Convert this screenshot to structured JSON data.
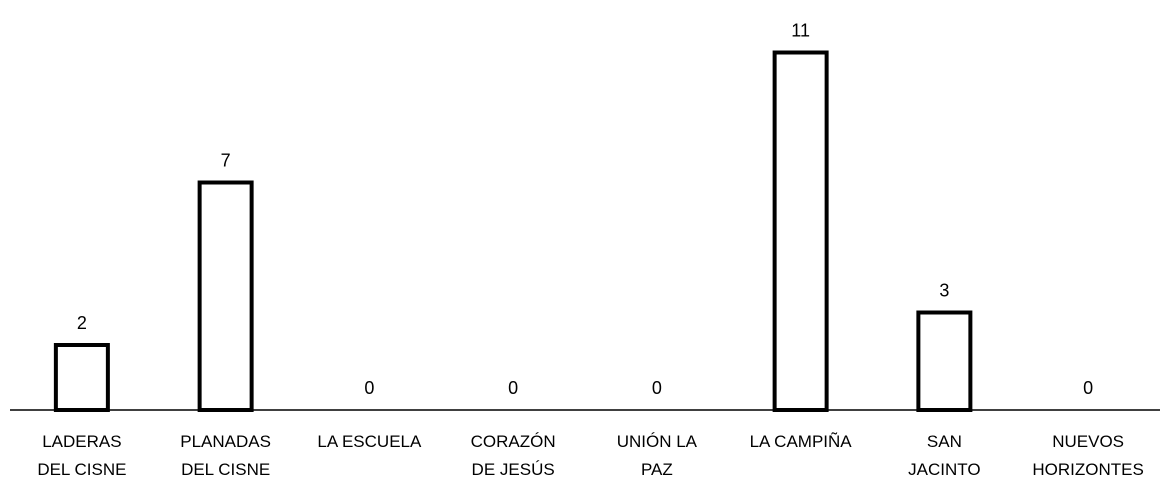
{
  "chart_data": {
    "type": "bar",
    "categories": [
      "LADERAS\nDEL CISNE",
      "PLANADAS\nDEL CISNE",
      "LA ESCUELA",
      "CORAZÓN\nDE JESÚS",
      "UNIÓN LA\nPAZ",
      "LA CAMPIÑA",
      "SAN\nJACINTO",
      "NUEVOS\nHORIZONTES"
    ],
    "values": [
      2,
      7,
      0,
      0,
      0,
      11,
      3,
      0
    ],
    "color": "#ffffff",
    "ylim": [
      0,
      12
    ]
  }
}
